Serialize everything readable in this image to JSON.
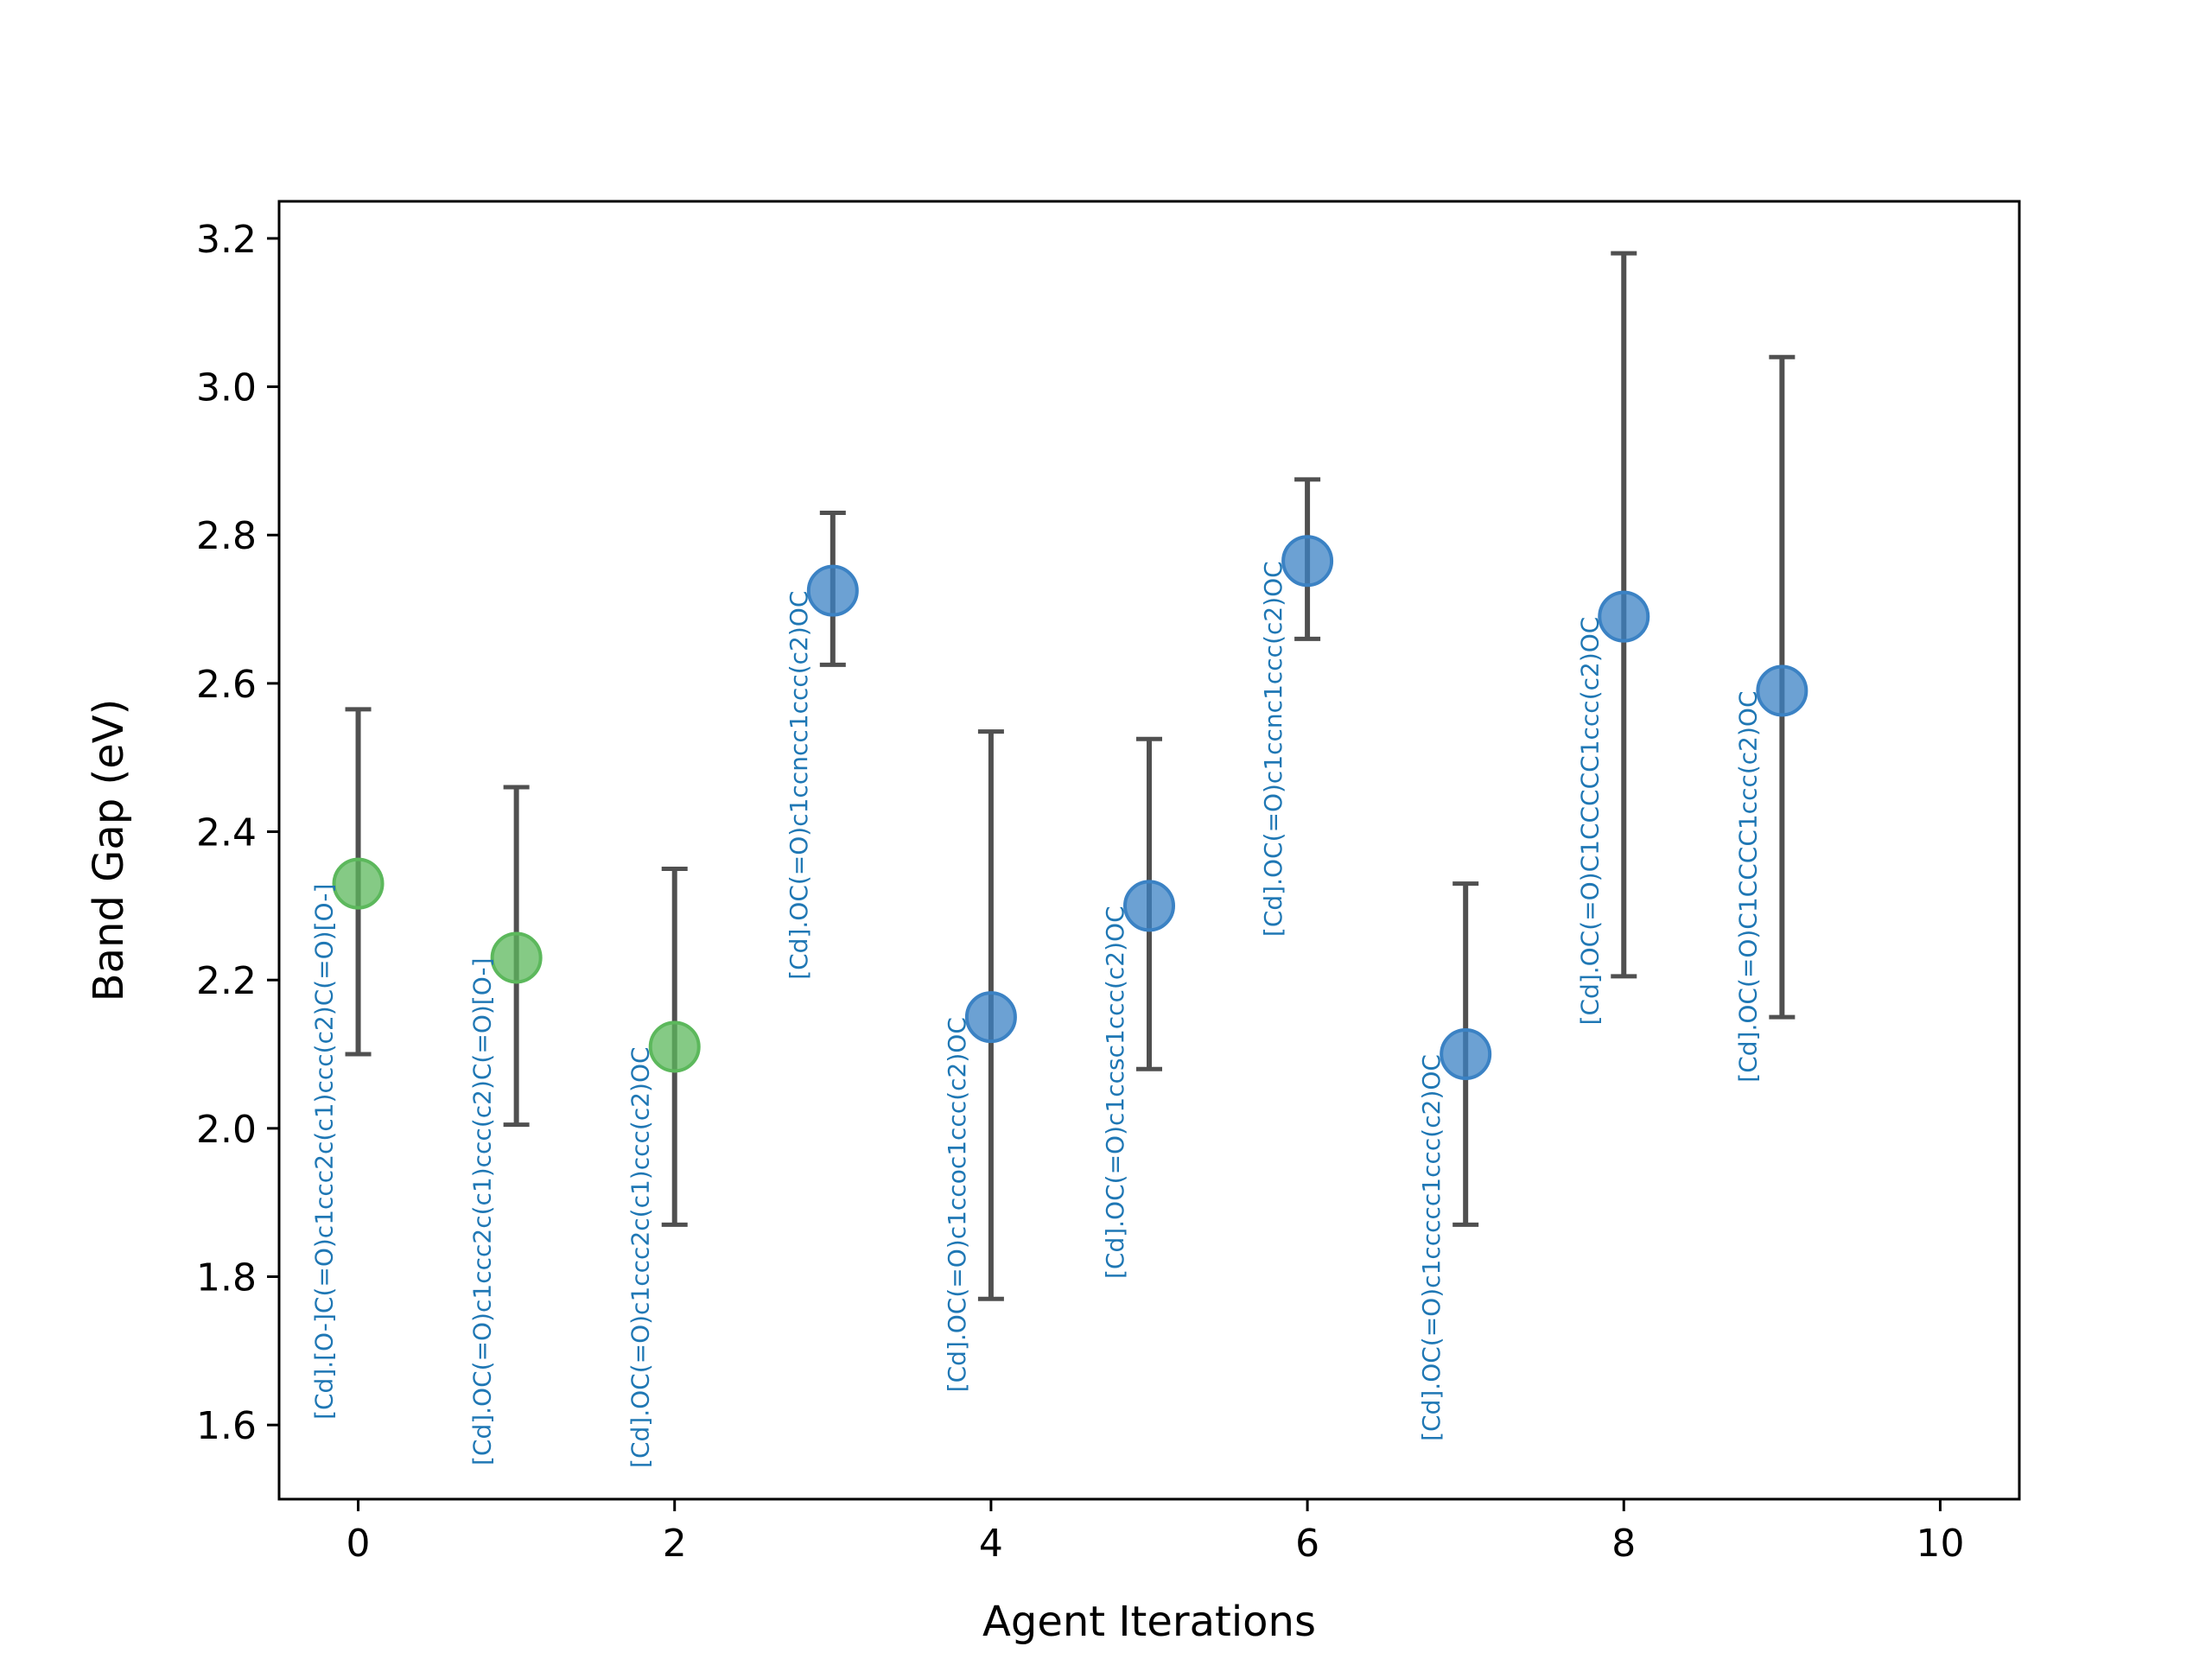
{
  "chart_data": {
    "type": "scatter",
    "title": "",
    "xlabel": "Agent Iterations",
    "ylabel": "Band Gap (eV)",
    "xlim": [
      -0.5,
      10.5
    ],
    "ylim": [
      1.5,
      3.25
    ],
    "xticks": [
      0,
      2,
      4,
      6,
      8,
      10
    ],
    "xtick_labels": [
      "0",
      "2",
      "4",
      "6",
      "8",
      "10"
    ],
    "yticks": [
      1.6,
      1.8,
      2.0,
      2.2,
      2.4,
      2.6,
      2.8,
      3.0,
      3.2
    ],
    "ytick_labels": [
      "1.6",
      "1.8",
      "2.0",
      "2.2",
      "2.4",
      "2.6",
      "2.8",
      "3.0",
      "3.2"
    ],
    "grid": false,
    "colors": {
      "accepted": "#5cb85c",
      "rejected": "#3b82c4",
      "error_bar": "#505050",
      "label": "#1f77b4"
    },
    "points": [
      {
        "x": 0,
        "y": 2.33,
        "err_low": 2.1,
        "err_high": 2.565,
        "status": "accepted",
        "label": "[Cd].[O-]C(=O)c1ccc2c(c1)ccc(c2)C(=O)[O-]"
      },
      {
        "x": 1,
        "y": 2.23,
        "err_low": 2.005,
        "err_high": 2.46,
        "status": "accepted",
        "label": "[Cd].OC(=O)c1ccc2c(c1)ccc(c2)C(=O)[O-]"
      },
      {
        "x": 2,
        "y": 2.11,
        "err_low": 1.87,
        "err_high": 2.35,
        "status": "accepted",
        "label": "[Cd].OC(=O)c1ccc2c(c1)ccc(c2)OC"
      },
      {
        "x": 3,
        "y": 2.725,
        "err_low": 2.625,
        "err_high": 2.83,
        "status": "rejected",
        "label": "[Cd].OC(=O)c1ccncc1ccc(c2)OC"
      },
      {
        "x": 4,
        "y": 2.15,
        "err_low": 1.77,
        "err_high": 2.535,
        "status": "rejected",
        "label": "[Cd].OC(=O)c1ccoc1ccc(c2)OC"
      },
      {
        "x": 5,
        "y": 2.3,
        "err_low": 2.08,
        "err_high": 2.525,
        "status": "rejected",
        "label": "[Cd].OC(=O)c1ccsc1ccc(c2)OC"
      },
      {
        "x": 6,
        "y": 2.765,
        "err_low": 2.66,
        "err_high": 2.875,
        "status": "rejected",
        "label": "[Cd].OC(=O)c1ccnc1ccc(c2)OC"
      },
      {
        "x": 7,
        "y": 2.1,
        "err_low": 1.87,
        "err_high": 2.33,
        "status": "rejected",
        "label": "[Cd].OC(=O)c1ccccc1ccc(c2)OC"
      },
      {
        "x": 8,
        "y": 2.69,
        "err_low": 2.205,
        "err_high": 3.18,
        "status": "rejected",
        "label": "[Cd].OC(=O)C1CCCCC1ccc(c2)OC"
      },
      {
        "x": 9,
        "y": 2.59,
        "err_low": 2.15,
        "err_high": 3.04,
        "status": "rejected",
        "label": "[Cd].OC(=O)C1CCCC1ccc(c2)OC"
      }
    ]
  }
}
